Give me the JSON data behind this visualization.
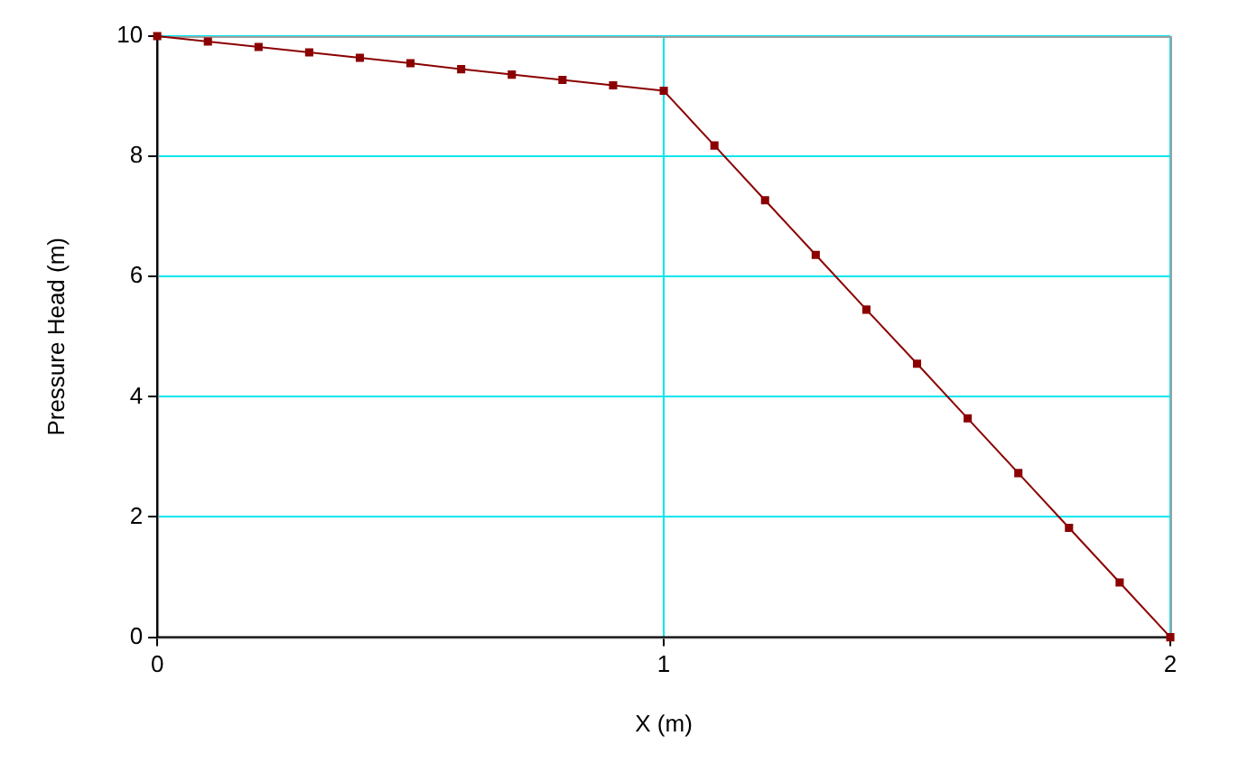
{
  "chart_data": {
    "type": "line",
    "xlabel": "X (m)",
    "ylabel": "Pressure Head (m)",
    "x": [
      0,
      0.1,
      0.2,
      0.3,
      0.4,
      0.5,
      0.6,
      0.7,
      0.8,
      0.9,
      1,
      1.1,
      1.2,
      1.3,
      1.4,
      1.5,
      1.6,
      1.7,
      1.8,
      1.9,
      2
    ],
    "series": [
      {
        "color": "#8b0000",
        "values": [
          10,
          9.91,
          9.82,
          9.73,
          9.64,
          9.55,
          9.45,
          9.36,
          9.27,
          9.18,
          9.09,
          8.18,
          7.27,
          6.36,
          5.45,
          4.55,
          3.64,
          2.73,
          1.82,
          0.91,
          0
        ]
      }
    ],
    "xlim": [
      0,
      2
    ],
    "xticks": [
      0,
      1,
      2
    ],
    "ylim": [
      0,
      10
    ],
    "yticks": [
      0,
      2,
      4,
      6,
      8,
      10
    ],
    "grid": true,
    "marker": "square",
    "line_style": "solid",
    "legend": false
  }
}
